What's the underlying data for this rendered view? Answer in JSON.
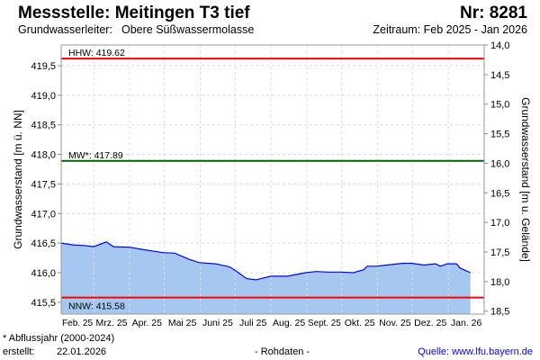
{
  "header": {
    "title": "Messstelle: Meitingen T3 tief",
    "number": "Nr: 8281",
    "aquifer_label": "Grundwasserleiter:",
    "aquifer_value": "Obere Süßwassermolasse",
    "period": "Zeitraum: Feb 2025 - Jan 2026"
  },
  "footer": {
    "note": "* Abflussjahr (2000-2024)",
    "created_label": "erstellt:",
    "created_date": "22.01.2026",
    "raw": "- Rohdaten -",
    "source": "Quelle: www.lfu.bayern.de"
  },
  "chart_data": {
    "type": "area",
    "ylabel": "Grundwasserstand [m ü. NN]",
    "ylabel_right": "Grundwasserstand [m u. Gelände]",
    "ylim": [
      415.3,
      419.85
    ],
    "ylim_right": [
      14.0,
      18.55
    ],
    "yticks": [
      "415,5",
      "416,0",
      "416,5",
      "417,0",
      "417,5",
      "418,0",
      "418,5",
      "419,0",
      "419,5"
    ],
    "yticks_right": [
      "14,0",
      "14,5",
      "15,0",
      "15,5",
      "16,0",
      "16,5",
      "17,0",
      "17,5",
      "18,0",
      "18,5"
    ],
    "x_unit": "days since 2025-02-01",
    "xlim": [
      0,
      387
    ],
    "months": [
      {
        "label": "Feb. 25",
        "start": 0
      },
      {
        "label": "Mrz. 25",
        "start": 28
      },
      {
        "label": "Apr. 25",
        "start": 59
      },
      {
        "label": "Mai 25",
        "start": 89
      },
      {
        "label": "Juni 25",
        "start": 120
      },
      {
        "label": "Juli 25",
        "start": 150
      },
      {
        "label": "Aug. 25",
        "start": 181
      },
      {
        "label": "Sept. 25",
        "start": 212
      },
      {
        "label": "Okt. 25",
        "start": 242
      },
      {
        "label": "Nov. 25",
        "start": 273
      },
      {
        "label": "Dez. 25",
        "start": 303
      },
      {
        "label": "Jan. 26",
        "start": 334
      }
    ],
    "reference_lines": [
      {
        "name": "HHW",
        "label": "HHW: 419.62",
        "value": 419.62,
        "color": "#ff0000"
      },
      {
        "name": "MW",
        "label": "MW*: 417.89",
        "value": 417.89,
        "color": "#006400"
      },
      {
        "name": "NNW",
        "label": "NNW: 415.58",
        "value": 415.58,
        "color": "#ff0000"
      }
    ],
    "series": [
      {
        "name": "Grundwasserstand",
        "line_color": "#0000ff",
        "fill_color": "#a6c8f0",
        "x": [
          0,
          10,
          20,
          28,
          39,
          45,
          59,
          71,
          88,
          98,
          110,
          119,
          133,
          145,
          150,
          160,
          168,
          181,
          195,
          211,
          220,
          230,
          241,
          252,
          261,
          264,
          272,
          281,
          295,
          302,
          313,
          323,
          327,
          333,
          341,
          344,
          353
        ],
        "y": [
          416.5,
          416.47,
          416.46,
          416.44,
          416.52,
          416.44,
          416.43,
          416.39,
          416.34,
          416.33,
          416.23,
          416.17,
          416.15,
          416.1,
          416.04,
          415.9,
          415.88,
          415.94,
          415.94,
          416.0,
          416.02,
          416.01,
          416.01,
          416.0,
          416.05,
          416.11,
          416.11,
          416.13,
          416.16,
          416.16,
          416.13,
          416.15,
          416.11,
          416.15,
          416.15,
          416.08,
          416.0
        ]
      }
    ]
  }
}
